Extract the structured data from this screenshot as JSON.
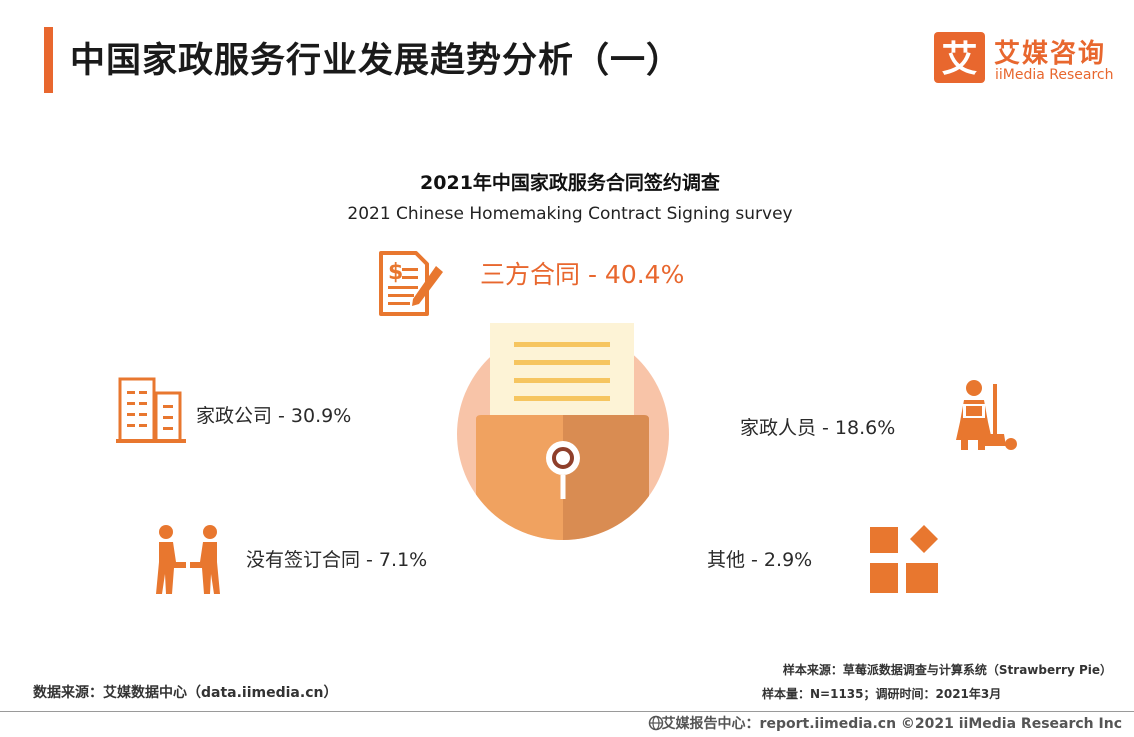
{
  "page_title": "中国家政服务行业发展趋势分析（一）",
  "logo": {
    "cn": "艾媒咨询",
    "en": "iiMedia Research",
    "mark": "艾"
  },
  "colors": {
    "accent": "#e8672e",
    "icon": "#e8772f",
    "light_orange": "#f8c4a8",
    "envelope_light": "#f0a260",
    "envelope_dark": "#d98c52"
  },
  "chart_data": {
    "type": "pie",
    "title": "2021年中国家政服务合同签约调查",
    "subtitle": "2021 Chinese Homemaking Contract Signing survey",
    "categories": [
      "三方合同",
      "家政公司",
      "家政人员",
      "没有签订合同",
      "其他"
    ],
    "values": [
      40.4,
      30.9,
      18.6,
      7.1,
      2.9
    ],
    "labels": [
      "三方合同 - 40.4%",
      "家政公司 - 30.9%",
      "家政人员 - 18.6%",
      "没有签订合同 - 7.1%",
      "其他 - 2.9%"
    ],
    "icons": [
      "contract-icon",
      "building-icon",
      "housekeeper-icon",
      "handshake-icon",
      "shapes-icon"
    ]
  },
  "footer": {
    "source": "数据来源：艾媒数据中心（data.iimedia.cn）",
    "sample_source": "样本来源：草莓派数据调查与计算系统（Strawberry Pie）",
    "sample_size": "样本量：N=1135；调研时间：2021年3月",
    "copyright": "艾媒报告中心：report.iimedia.cn   ©2021  iiMedia Research  Inc"
  }
}
